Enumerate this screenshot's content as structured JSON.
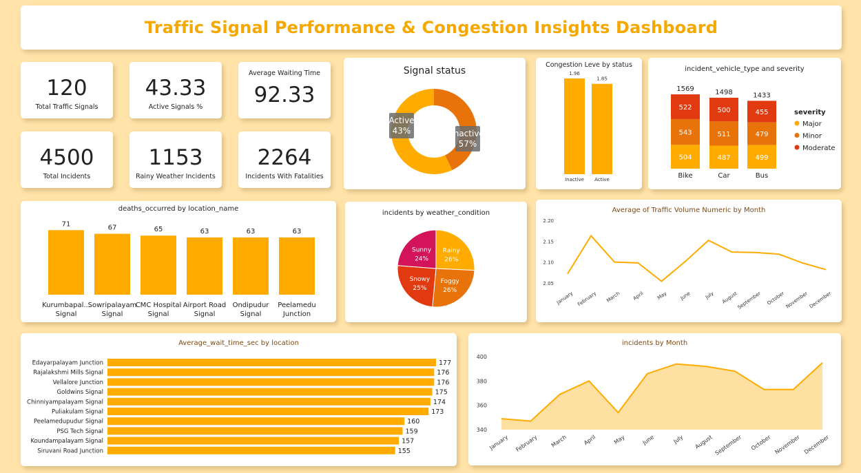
{
  "header": {
    "title": "Traffic Signal Performance & Congestion Insights Dashboard"
  },
  "kpis": {
    "total_signals": {
      "value": "120",
      "label": "Total Traffic Signals"
    },
    "active_pct": {
      "value": "43.33",
      "label": "Active Signals %"
    },
    "avg_wait": {
      "value": "92.33",
      "label": "Average Waiting Time"
    },
    "total_incidents": {
      "value": "4500",
      "label": "Total Incidents"
    },
    "rainy_incidents": {
      "value": "1153",
      "label": "Rainy Weather Incidents"
    },
    "fatalities": {
      "value": "2264",
      "label": "Incidents With Fatalities"
    }
  },
  "colors": {
    "major": "#FFAB00",
    "minor": "#E8730A",
    "moderate": "#E23A10",
    "sunny": "#D4145A",
    "accent": "#F5A800"
  },
  "chart_data": [
    {
      "id": "signal_status",
      "type": "pie",
      "title": "Signal status",
      "categories": [
        "Active",
        "Inactive"
      ],
      "values": [
        43,
        57
      ],
      "labels": [
        "43%",
        "57%"
      ]
    },
    {
      "id": "congestion",
      "type": "bar",
      "title": "Congestion Leve by status",
      "categories": [
        "Inactive",
        "Active"
      ],
      "values": [
        1.96,
        1.85
      ],
      "ylim": [
        0,
        2.1
      ]
    },
    {
      "id": "vehicle_severity",
      "type": "bar",
      "stacked": true,
      "title": "incident_vehicle_type and severity",
      "categories": [
        "Bike",
        "Car",
        "Bus"
      ],
      "totals": [
        1569,
        1498,
        1433
      ],
      "legend_title": "severity",
      "legend_position": "right",
      "series": [
        {
          "name": "Major",
          "values": [
            504,
            487,
            499
          ]
        },
        {
          "name": "Minor",
          "values": [
            543,
            511,
            479
          ]
        },
        {
          "name": "Moderate",
          "values": [
            522,
            500,
            455
          ]
        }
      ]
    },
    {
      "id": "deaths_location",
      "type": "bar",
      "title": "deaths_occurred by location_name",
      "categories": [
        [
          "Kurumbapal...",
          "Signal"
        ],
        [
          "Sowripalayam",
          "Signal"
        ],
        [
          "CMC Hospital",
          "Signal"
        ],
        [
          "Airport Road",
          "Signal"
        ],
        [
          "Ondipudur",
          "Signal"
        ],
        [
          "Peelamedu",
          "Junction"
        ]
      ],
      "values": [
        71,
        67,
        65,
        63,
        63,
        63
      ],
      "ylim": [
        0,
        75
      ]
    },
    {
      "id": "weather",
      "type": "pie",
      "title": "incidents by weather_condition",
      "categories": [
        "Rainy",
        "Foggy",
        "Snowy",
        "Sunny"
      ],
      "values": [
        26,
        26,
        25,
        24
      ],
      "labels": [
        "26%",
        "26%",
        "25%",
        "24%"
      ]
    },
    {
      "id": "traffic_volume",
      "type": "line",
      "title": "Average of Traffic Volume Numeric by Month",
      "x": [
        "January",
        "February",
        "March",
        "April",
        "May",
        "June",
        "July",
        "August",
        "September",
        "October",
        "November",
        "December"
      ],
      "values": [
        2.072,
        2.163,
        2.1,
        2.098,
        2.054,
        2.101,
        2.152,
        2.124,
        2.123,
        2.119,
        2.098,
        2.082
      ],
      "ylim": [
        2.05,
        2.2
      ],
      "yticks": [
        "2.05",
        "2.10",
        "2.15",
        "2.20"
      ]
    },
    {
      "id": "wait_location",
      "type": "bar",
      "orientation": "horizontal",
      "title": "Average_wait_time_sec by location",
      "categories": [
        "Edayarpalayam Junction",
        "Rajalakshmi Mills Signal",
        "Vellalore Junction",
        "Goldwins Signal",
        "Chinniyampalayam Signal",
        "Puliakulam Signal",
        "Peelamedupudur Signal",
        "PSG Tech Signal",
        "Koundampalayam Signal",
        "Siruvani Road Junction"
      ],
      "values": [
        177,
        176,
        176,
        175,
        174,
        173,
        160,
        159,
        157,
        155
      ],
      "xlim": [
        0,
        177
      ]
    },
    {
      "id": "incidents_month",
      "type": "area",
      "title": "incidents by Month",
      "x": [
        "January",
        "February",
        "March",
        "April",
        "May",
        "June",
        "July",
        "August",
        "September",
        "October",
        "November",
        "December"
      ],
      "values": [
        349,
        347,
        369,
        380,
        354,
        386,
        394,
        392,
        388,
        373,
        373,
        395
      ],
      "ylim": [
        340,
        400
      ],
      "yticks": [
        "340",
        "360",
        "380",
        "400"
      ]
    }
  ]
}
